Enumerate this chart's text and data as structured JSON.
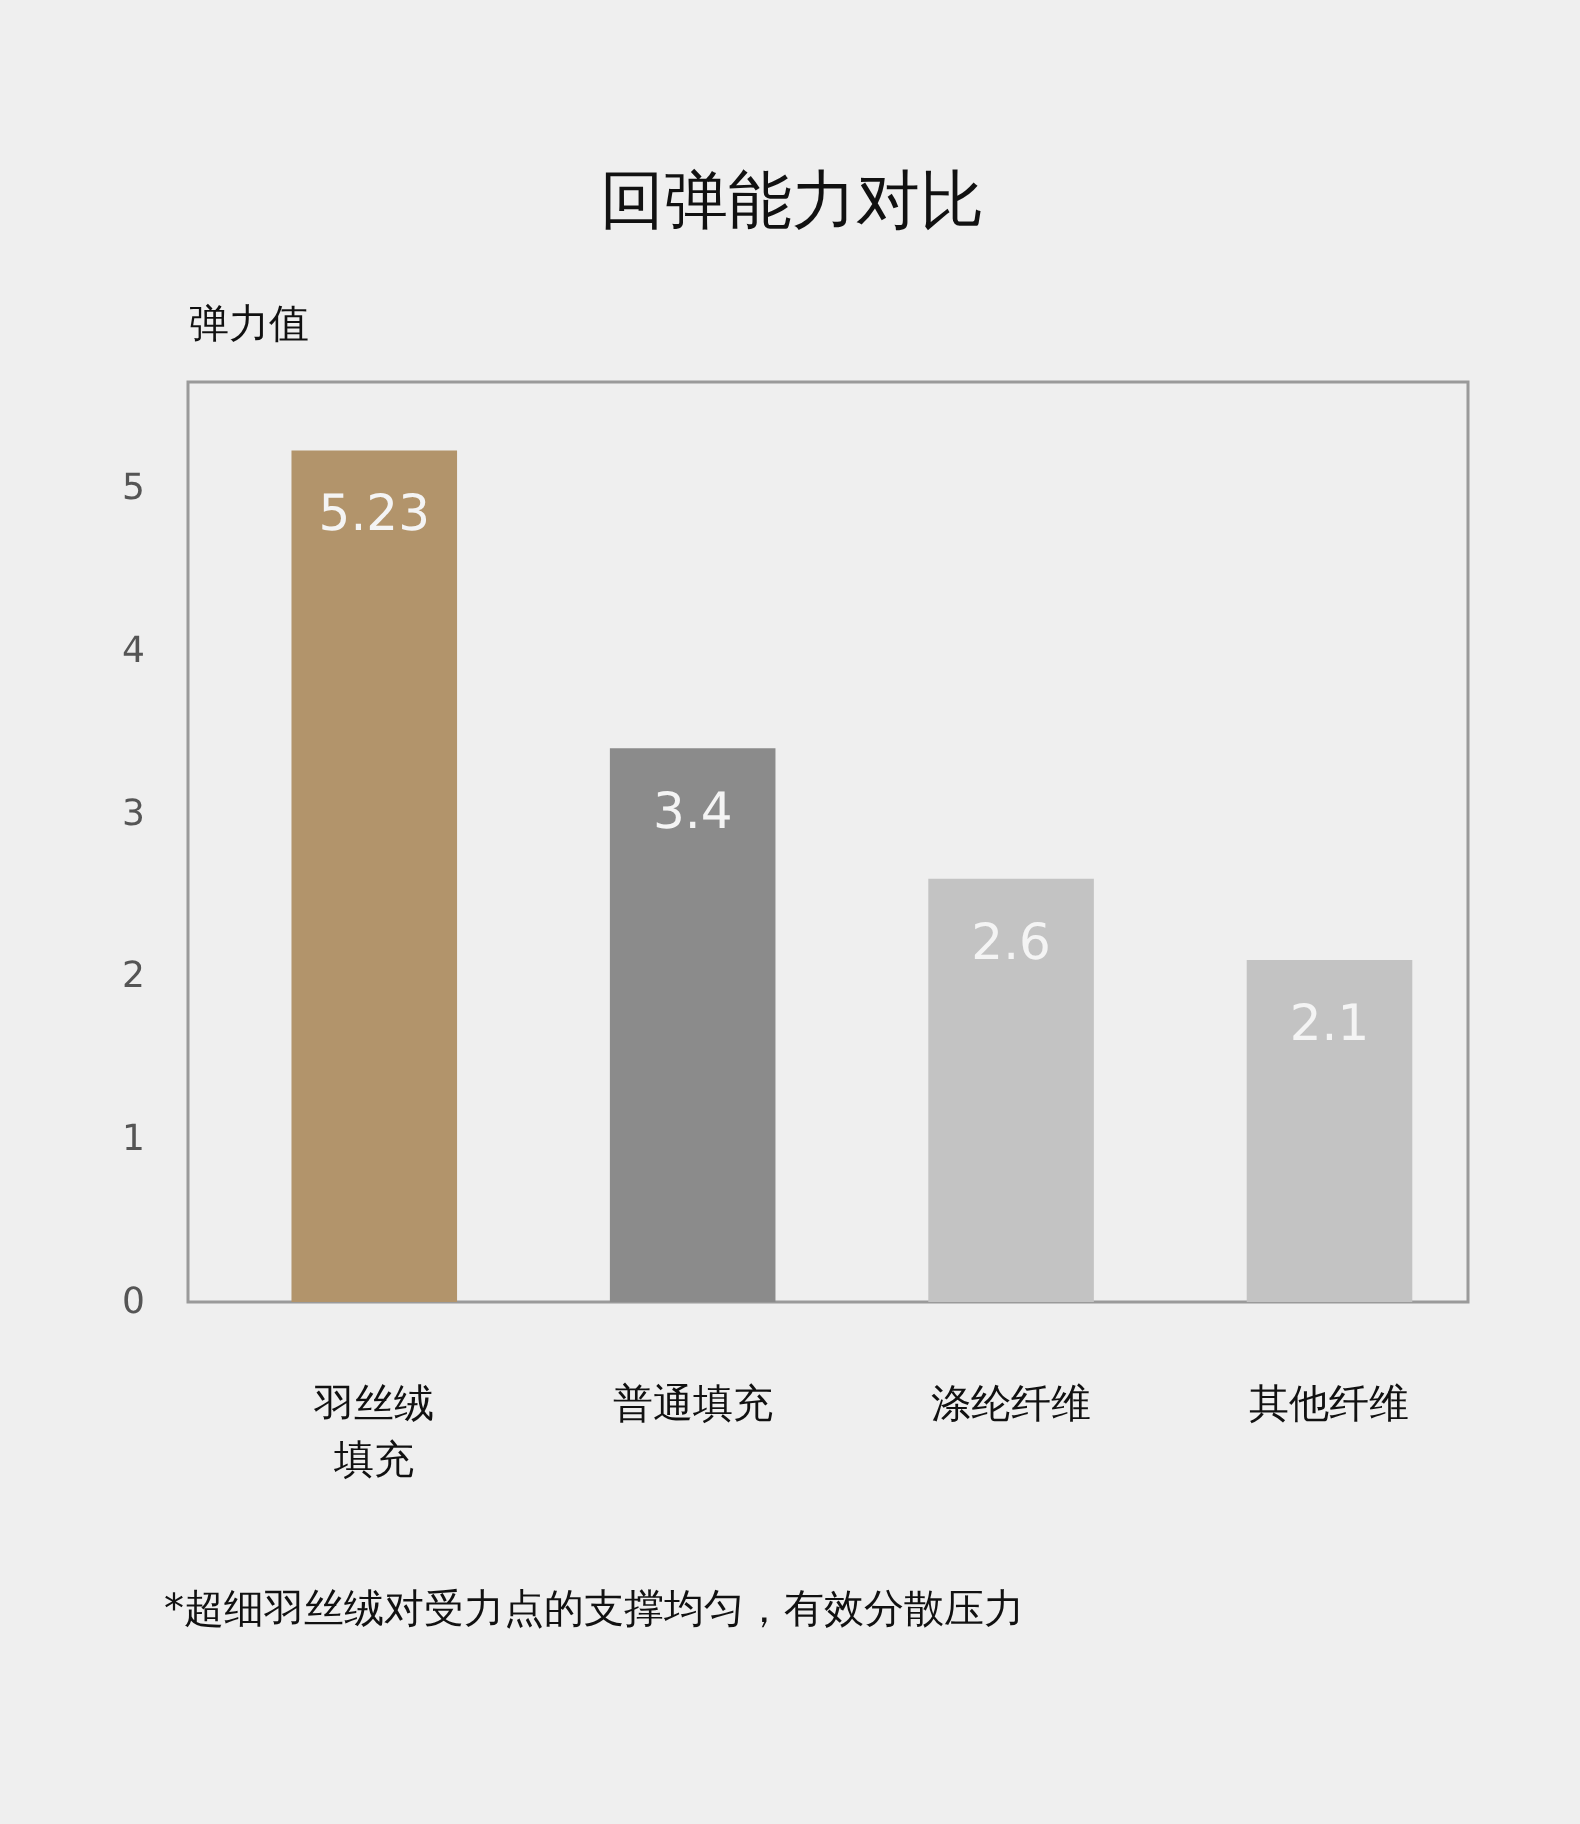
{
  "chart_data": {
    "type": "bar",
    "title": "回弹能力对比",
    "ylabel": "弹力值",
    "categories": [
      "羽丝绒填充",
      "普通填充",
      "涤纶纤维",
      "其他纤维"
    ],
    "values": [
      5.23,
      3.4,
      2.6,
      2.1
    ],
    "colors": [
      "#b2946b",
      "#8b8b8b",
      "#c3c3c3",
      "#c3c3c3"
    ],
    "ylim": [
      0,
      5.65
    ],
    "yticks": [
      0,
      1,
      2,
      3,
      4,
      5
    ],
    "data_labels": true,
    "annotations": [
      "*超细羽丝绒对受力点的支撑均匀，有效分散压力"
    ]
  }
}
